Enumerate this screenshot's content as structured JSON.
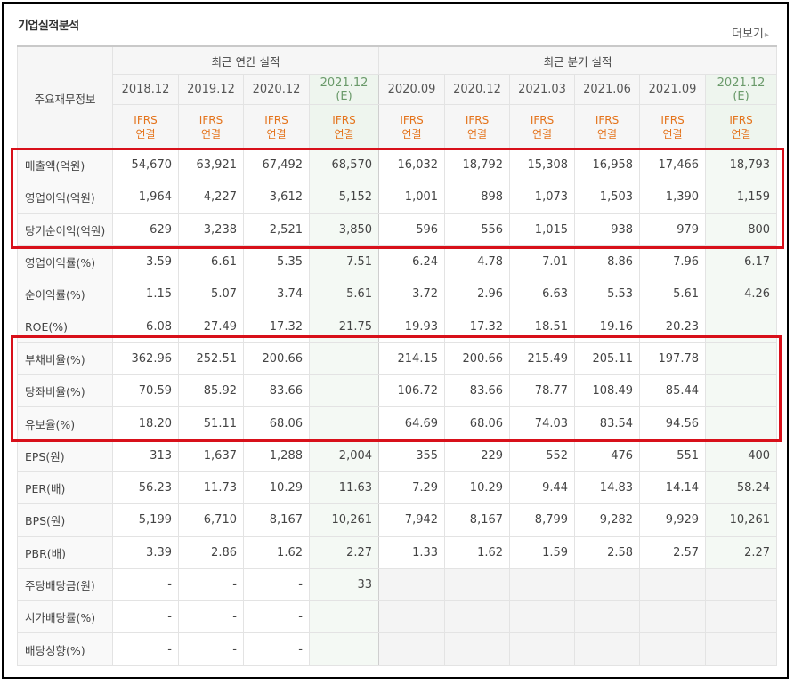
{
  "header": {
    "title": "기업실적분석",
    "more_label": "더보기"
  },
  "table": {
    "corner_label": "주요재무정보",
    "group_annual": "최근 연간 실적",
    "group_quarter": "최근 분기 실적",
    "ifrs_line1": "IFRS",
    "ifrs_line2": "연결",
    "annual_periods": [
      {
        "label": "2018.12",
        "est": ""
      },
      {
        "label": "2019.12",
        "est": ""
      },
      {
        "label": "2020.12",
        "est": ""
      },
      {
        "label": "2021.12",
        "est": "(E)"
      }
    ],
    "quarter_periods": [
      {
        "label": "2020.09",
        "est": ""
      },
      {
        "label": "2020.12",
        "est": ""
      },
      {
        "label": "2021.03",
        "est": ""
      },
      {
        "label": "2021.06",
        "est": ""
      },
      {
        "label": "2021.09",
        "est": ""
      },
      {
        "label": "2021.12",
        "est": "(E)"
      }
    ],
    "rows": [
      {
        "label": "매출액(억원)",
        "values": [
          "54,670",
          "63,921",
          "67,492",
          "68,570",
          "16,032",
          "18,792",
          "15,308",
          "16,958",
          "17,466",
          "18,793"
        ]
      },
      {
        "label": "영업이익(억원)",
        "values": [
          "1,964",
          "4,227",
          "3,612",
          "5,152",
          "1,001",
          "898",
          "1,073",
          "1,503",
          "1,390",
          "1,159"
        ]
      },
      {
        "label": "당기순이익(억원)",
        "values": [
          "629",
          "3,238",
          "2,521",
          "3,850",
          "596",
          "556",
          "1,015",
          "938",
          "979",
          "800"
        ]
      },
      {
        "label": "영업이익률(%)",
        "values": [
          "3.59",
          "6.61",
          "5.35",
          "7.51",
          "6.24",
          "4.78",
          "7.01",
          "8.86",
          "7.96",
          "6.17"
        ]
      },
      {
        "label": "순이익률(%)",
        "values": [
          "1.15",
          "5.07",
          "3.74",
          "5.61",
          "3.72",
          "2.96",
          "6.63",
          "5.53",
          "5.61",
          "4.26"
        ]
      },
      {
        "label": "ROE(%)",
        "values": [
          "6.08",
          "27.49",
          "17.32",
          "21.75",
          "19.93",
          "17.32",
          "18.51",
          "19.16",
          "20.23",
          ""
        ]
      },
      {
        "label": "부채비율(%)",
        "values": [
          "362.96",
          "252.51",
          "200.66",
          "",
          "214.15",
          "200.66",
          "215.49",
          "205.11",
          "197.78",
          ""
        ]
      },
      {
        "label": "당좌비율(%)",
        "values": [
          "70.59",
          "85.92",
          "83.66",
          "",
          "106.72",
          "83.66",
          "78.77",
          "108.49",
          "85.44",
          ""
        ]
      },
      {
        "label": "유보율(%)",
        "values": [
          "18.20",
          "51.11",
          "68.06",
          "",
          "64.69",
          "68.06",
          "74.03",
          "83.54",
          "94.56",
          ""
        ]
      },
      {
        "label": "EPS(원)",
        "values": [
          "313",
          "1,637",
          "1,288",
          "2,004",
          "355",
          "229",
          "552",
          "476",
          "551",
          "400"
        ]
      },
      {
        "label": "PER(배)",
        "values": [
          "56.23",
          "11.73",
          "10.29",
          "11.63",
          "7.29",
          "10.29",
          "9.44",
          "14.83",
          "14.14",
          "58.24"
        ]
      },
      {
        "label": "BPS(원)",
        "values": [
          "5,199",
          "6,710",
          "8,167",
          "10,261",
          "7,942",
          "8,167",
          "8,799",
          "9,282",
          "9,929",
          "10,261"
        ]
      },
      {
        "label": "PBR(배)",
        "values": [
          "3.39",
          "2.86",
          "1.62",
          "2.27",
          "1.33",
          "1.62",
          "1.59",
          "2.58",
          "2.57",
          "2.27"
        ]
      },
      {
        "label": "주당배당금(원)",
        "values": [
          "-",
          "-",
          "-",
          "33",
          "",
          "",
          "",
          "",
          "",
          ""
        ]
      },
      {
        "label": "시가배당률(%)",
        "values": [
          "-",
          "-",
          "-",
          "",
          "",
          "",
          "",
          "",
          "",
          ""
        ]
      },
      {
        "label": "배당성향(%)",
        "values": [
          "-",
          "-",
          "-",
          "",
          "",
          "",
          "",
          "",
          "",
          ""
        ]
      }
    ]
  },
  "colors": {
    "highlight_box": "#d8101a",
    "ifrs_text": "#e4731b",
    "estimate_bg": "#eef5ee"
  }
}
